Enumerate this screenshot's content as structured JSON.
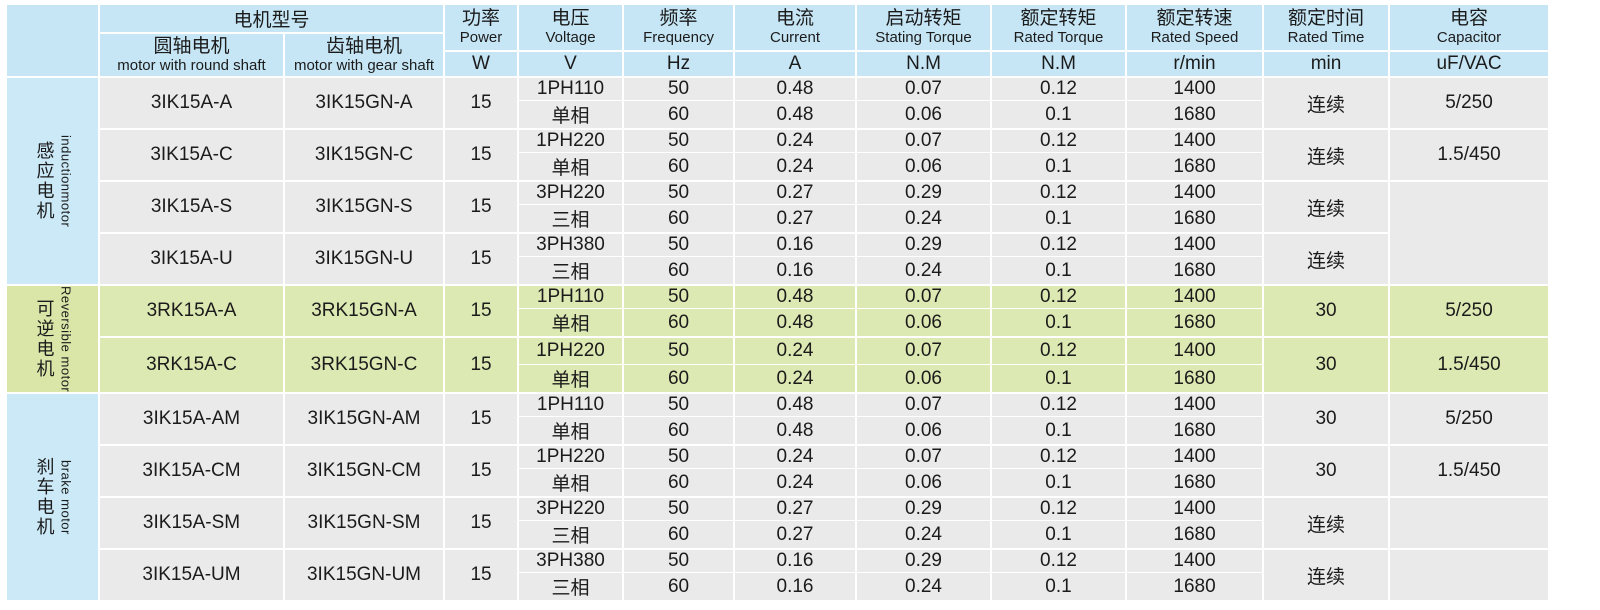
{
  "colors": {
    "header_blue": "#c6e6f5",
    "label_blue": "#cbe9f7",
    "row_gray": "#eaeaea",
    "row_green": "#dde9b3",
    "label_green": "#d9e6a8",
    "grid_white": "#ffffff",
    "text": "#1b1b1b"
  },
  "table": {
    "header": {
      "model_group_label": "电机型号",
      "round_shaft": {
        "zh": "圆轴电机",
        "en": "motor with round shaft"
      },
      "gear_shaft": {
        "zh": "齿轴电机",
        "en": "motor with gear shaft"
      },
      "cols": [
        {
          "zh": "功率",
          "en": "Power",
          "unit": "W"
        },
        {
          "zh": "电压",
          "en": "Voltage",
          "unit": "V"
        },
        {
          "zh": "频率",
          "en": "Frequency",
          "unit": "Hz"
        },
        {
          "zh": "电流",
          "en": "Current",
          "unit": "A"
        },
        {
          "zh": "启动转矩",
          "en": "Stating Torque",
          "unit": "N.M"
        },
        {
          "zh": "额定转矩",
          "en": "Rated Torque",
          "unit": "N.M"
        },
        {
          "zh": "额定转速",
          "en": "Rated Speed",
          "unit": "r/min"
        },
        {
          "zh": "额定时间",
          "en": "Rated Time",
          "unit": "min"
        },
        {
          "zh": "电容",
          "en": "Capacitor",
          "unit": "uF/VAC"
        }
      ]
    },
    "sections": [
      {
        "label_zh": "感应电机",
        "label_en": "inductionmotor",
        "theme": "gray",
        "label_theme": "blue",
        "rows": [
          {
            "round": "3IK15A-A",
            "gear": "3IK15GN-A",
            "power": "15",
            "voltage": [
              "1PH110",
              "单相"
            ],
            "freq": [
              "50",
              "60"
            ],
            "current": [
              "0.48",
              "0.48"
            ],
            "stating": [
              "0.07",
              "0.06"
            ],
            "rated": [
              "0.12",
              "0.1"
            ],
            "speed": [
              "1400",
              "1680"
            ],
            "time": "连续",
            "cap": "5/250"
          },
          {
            "round": "3IK15A-C",
            "gear": "3IK15GN-C",
            "power": "15",
            "voltage": [
              "1PH220",
              "单相"
            ],
            "freq": [
              "50",
              "60"
            ],
            "current": [
              "0.24",
              "0.24"
            ],
            "stating": [
              "0.07",
              "0.06"
            ],
            "rated": [
              "0.12",
              "0.1"
            ],
            "speed": [
              "1400",
              "1680"
            ],
            "time": "连续",
            "cap": "1.5/450"
          },
          {
            "round": "3IK15A-S",
            "gear": "3IK15GN-S",
            "power": "15",
            "voltage": [
              "3PH220",
              "三相"
            ],
            "freq": [
              "50",
              "60"
            ],
            "current": [
              "0.27",
              "0.27"
            ],
            "stating": [
              "0.29",
              "0.24"
            ],
            "rated": [
              "0.12",
              "0.1"
            ],
            "speed": [
              "1400",
              "1680"
            ],
            "time": "连续",
            "cap": "",
            "cap_rows": 2
          },
          {
            "round": "3IK15A-U",
            "gear": "3IK15GN-U",
            "power": "15",
            "voltage": [
              "3PH380",
              "三相"
            ],
            "freq": [
              "50",
              "60"
            ],
            "current": [
              "0.16",
              "0.16"
            ],
            "stating": [
              "0.29",
              "0.24"
            ],
            "rated": [
              "0.12",
              "0.1"
            ],
            "speed": [
              "1400",
              "1680"
            ],
            "time": "连续",
            "cap": null
          }
        ]
      },
      {
        "label_zh": "可逆电机",
        "label_en": "Reversible motor",
        "theme": "green",
        "label_theme": "green",
        "rows": [
          {
            "round": "3RK15A-A",
            "gear": "3RK15GN-A",
            "power": "15",
            "voltage": [
              "1PH110",
              "单相"
            ],
            "freq": [
              "50",
              "60"
            ],
            "current": [
              "0.48",
              "0.48"
            ],
            "stating": [
              "0.07",
              "0.06"
            ],
            "rated": [
              "0.12",
              "0.1"
            ],
            "speed": [
              "1400",
              "1680"
            ],
            "time": "30",
            "cap": "5/250"
          },
          {
            "round": "3RK15A-C",
            "gear": "3RK15GN-C",
            "power": "15",
            "voltage": [
              "1PH220",
              "单相"
            ],
            "freq": [
              "50",
              "60"
            ],
            "current": [
              "0.24",
              "0.24"
            ],
            "stating": [
              "0.07",
              "0.06"
            ],
            "rated": [
              "0.12",
              "0.1"
            ],
            "speed": [
              "1400",
              "1680"
            ],
            "time": "30",
            "cap": "1.5/450"
          }
        ]
      },
      {
        "label_zh": "刹车电机",
        "label_en": "brake motor",
        "theme": "gray",
        "label_theme": "blue",
        "rows": [
          {
            "round": "3IK15A-AM",
            "gear": "3IK15GN-AM",
            "power": "15",
            "voltage": [
              "1PH110",
              "单相"
            ],
            "freq": [
              "50",
              "60"
            ],
            "current": [
              "0.48",
              "0.48"
            ],
            "stating": [
              "0.07",
              "0.06"
            ],
            "rated": [
              "0.12",
              "0.1"
            ],
            "speed": [
              "1400",
              "1680"
            ],
            "time": "30",
            "cap": "5/250"
          },
          {
            "round": "3IK15A-CM",
            "gear": "3IK15GN-CM",
            "power": "15",
            "voltage": [
              "1PH220",
              "单相"
            ],
            "freq": [
              "50",
              "60"
            ],
            "current": [
              "0.24",
              "0.24"
            ],
            "stating": [
              "0.07",
              "0.06"
            ],
            "rated": [
              "0.12",
              "0.1"
            ],
            "speed": [
              "1400",
              "1680"
            ],
            "time": "30",
            "cap": "1.5/450"
          },
          {
            "round": "3IK15A-SM",
            "gear": "3IK15GN-SM",
            "power": "15",
            "voltage": [
              "3PH220",
              "三相"
            ],
            "freq": [
              "50",
              "60"
            ],
            "current": [
              "0.27",
              "0.27"
            ],
            "stating": [
              "0.29",
              "0.24"
            ],
            "rated": [
              "0.12",
              "0.1"
            ],
            "speed": [
              "1400",
              "1680"
            ],
            "time": "连续",
            "cap": ""
          },
          {
            "round": "3IK15A-UM",
            "gear": "3IK15GN-UM",
            "power": "15",
            "voltage": [
              "3PH380",
              "三相"
            ],
            "freq": [
              "50",
              "60"
            ],
            "current": [
              "0.16",
              "0.16"
            ],
            "stating": [
              "0.29",
              "0.24"
            ],
            "rated": [
              "0.12",
              "0.1"
            ],
            "speed": [
              "1400",
              "1680"
            ],
            "time": "连续",
            "cap": ""
          }
        ]
      }
    ]
  }
}
